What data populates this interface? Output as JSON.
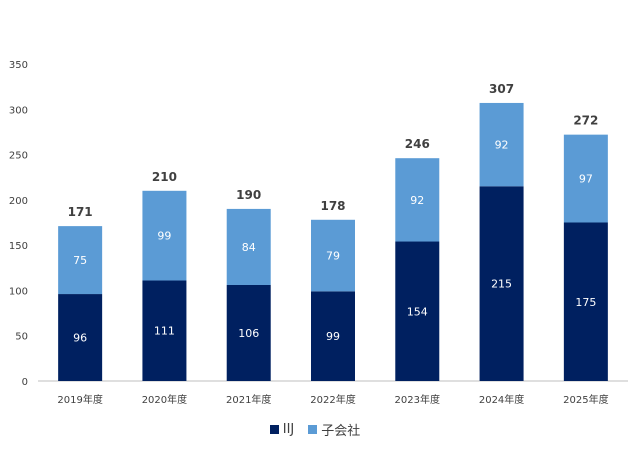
{
  "chart_data": {
    "type": "bar",
    "stacked": true,
    "title": "",
    "xlabel": "",
    "ylabel": "",
    "ylim": [
      0,
      350
    ],
    "yticks": [
      0,
      50,
      100,
      150,
      200,
      250,
      300,
      350
    ],
    "grid": false,
    "legend_position": "bottom",
    "categories": [
      "2019年度",
      "2020年度",
      "2021年度",
      "2022年度",
      "2023年度",
      "2024年度",
      "2025年度"
    ],
    "series": [
      {
        "name": "IIJ",
        "color": "#002060",
        "values": [
          96,
          111,
          106,
          99,
          154,
          215,
          175
        ]
      },
      {
        "name": "子会社",
        "color": "#5b9bd5",
        "values": [
          75,
          99,
          84,
          79,
          92,
          92,
          97
        ]
      }
    ],
    "totals": [
      171,
      210,
      190,
      178,
      246,
      307,
      272
    ]
  }
}
